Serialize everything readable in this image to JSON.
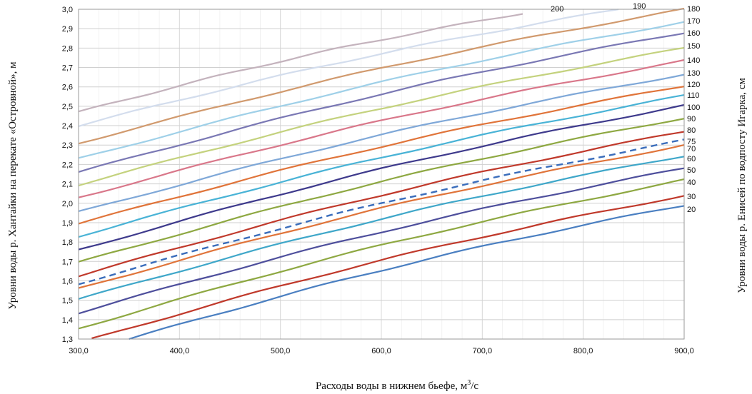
{
  "chart_data": {
    "type": "line",
    "xlabel": "Расходы воды в нижнем бьефе, м",
    "xlabel_sup": "3",
    "xlabel_suffix": "/с",
    "ylabel": "Уровни воды р. Хантайки на перекате «Островной», м",
    "y2label": "Уровни воды р. Енисей по водпосту Игарка, см",
    "xlim": [
      300,
      900
    ],
    "ylim": [
      1.3,
      3.0
    ],
    "x_ticks": [
      "300,0",
      "400,0",
      "500,0",
      "600,0",
      "700,0",
      "800,0",
      "900,0"
    ],
    "y_ticks": [
      "1,3",
      "1,4",
      "1,5",
      "1,6",
      "1,7",
      "1,8",
      "1,9",
      "2,0",
      "2,1",
      "2,2",
      "2,3",
      "2,4",
      "2,5",
      "2,6",
      "2,7",
      "2,8",
      "2,9",
      "3,0"
    ],
    "grid": true,
    "series": [
      {
        "name": "20",
        "color": "#4a7fc1",
        "x": [
          350,
          900
        ],
        "y": [
          1.3,
          1.99
        ]
      },
      {
        "name": "30",
        "color": "#c0392b",
        "x": [
          313,
          900
        ],
        "y": [
          1.3,
          2.04
        ]
      },
      {
        "name": "40",
        "color": "#8ea842",
        "x": [
          300,
          900
        ],
        "y": [
          1.355,
          2.12
        ]
      },
      {
        "name": "50",
        "color": "#4e4f9c",
        "x": [
          300,
          900
        ],
        "y": [
          1.435,
          2.18
        ]
      },
      {
        "name": "60",
        "color": "#3fa7c9",
        "x": [
          300,
          900
        ],
        "y": [
          1.505,
          2.245
        ]
      },
      {
        "name": "70",
        "color": "#e0743a",
        "x": [
          300,
          900
        ],
        "y": [
          1.56,
          2.3
        ]
      },
      {
        "name": "75",
        "color": "#3a6dbb",
        "x": [
          300,
          900
        ],
        "y": [
          1.585,
          2.325
        ],
        "dashed": true
      },
      {
        "name": "80",
        "color": "#c0392b",
        "x": [
          300,
          900
        ],
        "y": [
          1.625,
          2.37
        ]
      },
      {
        "name": "90",
        "color": "#8ea842",
        "x": [
          300,
          900
        ],
        "y": [
          1.695,
          2.44
        ]
      },
      {
        "name": "100",
        "color": "#3e3a8c",
        "x": [
          300,
          900
        ],
        "y": [
          1.76,
          2.505
        ]
      },
      {
        "name": "110",
        "color": "#49b3d6",
        "x": [
          300,
          900
        ],
        "y": [
          1.83,
          2.555
        ]
      },
      {
        "name": "120",
        "color": "#e0743a",
        "x": [
          300,
          900
        ],
        "y": [
          1.895,
          2.605
        ]
      },
      {
        "name": "130",
        "color": "#7fa8d8",
        "x": [
          300,
          900
        ],
        "y": [
          1.955,
          2.665
        ]
      },
      {
        "name": "140",
        "color": "#d9778a",
        "x": [
          300,
          900
        ],
        "y": [
          2.03,
          2.735
        ]
      },
      {
        "name": "150",
        "color": "#c4d27e",
        "x": [
          300,
          900
        ],
        "y": [
          2.095,
          2.8
        ]
      },
      {
        "name": "160",
        "color": "#7a78b4",
        "x": [
          300,
          900
        ],
        "y": [
          2.16,
          2.88
        ]
      },
      {
        "name": "170",
        "color": "#9fd0e8",
        "x": [
          300,
          900
        ],
        "y": [
          2.23,
          2.935
        ]
      },
      {
        "name": "180",
        "color": "#d19a6e",
        "x": [
          300,
          900
        ],
        "y": [
          2.31,
          3.0
        ]
      },
      {
        "name": "190",
        "color": "#d3dded",
        "x": [
          300,
          835
        ],
        "y": [
          2.4,
          3.0
        ]
      },
      {
        "name": "200",
        "color": "#c4b3bd",
        "x": [
          300,
          740
        ],
        "y": [
          2.47,
          2.98
        ]
      }
    ]
  }
}
